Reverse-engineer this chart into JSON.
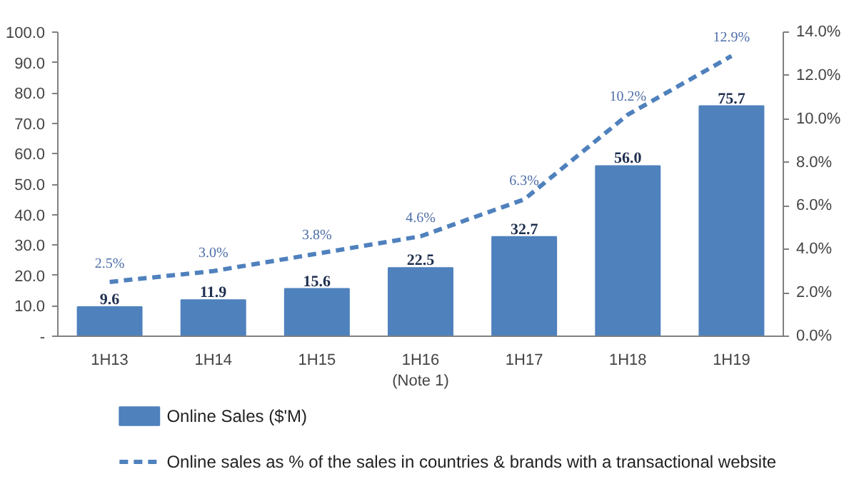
{
  "chart_data": {
    "type": "bar",
    "categories": [
      "1H13",
      "1H14",
      "1H15",
      "1H16\n(Note 1)",
      "1H17",
      "1H18",
      "1H19"
    ],
    "series": [
      {
        "name": "Online Sales ($'M)",
        "type": "bar",
        "color": "#4f81bd",
        "values": [
          9.6,
          11.9,
          15.6,
          22.5,
          32.7,
          56.0,
          75.7
        ],
        "value_labels": [
          "9.6",
          "11.9",
          "15.6",
          "22.5",
          "32.7",
          "56.0",
          "75.7"
        ]
      },
      {
        "name": "Online sales as % of the sales in countries & brands with a transactional website",
        "type": "line",
        "axis": "y2",
        "color": "#4f81bd",
        "line_style": "dashed",
        "values": [
          2.5,
          3.0,
          3.8,
          4.6,
          6.3,
          10.2,
          12.9
        ],
        "value_labels": [
          "2.5%",
          "3.0%",
          "3.8%",
          "4.6%",
          "6.3%",
          "10.2%",
          "12.9%"
        ]
      }
    ],
    "ylim": [
      0,
      100
    ],
    "yticks": [
      {
        "value": 0,
        "label": "-"
      },
      {
        "value": 10,
        "label": "10.0"
      },
      {
        "value": 20,
        "label": "20.0"
      },
      {
        "value": 30,
        "label": "30.0"
      },
      {
        "value": 40,
        "label": "40.0"
      },
      {
        "value": 50,
        "label": "50.0"
      },
      {
        "value": 60,
        "label": "60.0"
      },
      {
        "value": 70,
        "label": "70.0"
      },
      {
        "value": 80,
        "label": "80.0"
      },
      {
        "value": 90,
        "label": "90.0"
      },
      {
        "value": 100,
        "label": "100.0"
      }
    ],
    "y2lim": [
      0,
      14
    ],
    "y2ticks": [
      {
        "value": 0,
        "label": "0.0%"
      },
      {
        "value": 2,
        "label": "2.0%"
      },
      {
        "value": 4,
        "label": "4.0%"
      },
      {
        "value": 6,
        "label": "6.0%"
      },
      {
        "value": 8,
        "label": "8.0%"
      },
      {
        "value": 10,
        "label": "10.0%"
      },
      {
        "value": 12,
        "label": "12.0%"
      },
      {
        "value": 14,
        "label": "14.0%"
      }
    ],
    "grid": false,
    "legend": "bottom",
    "marker": "none"
  }
}
